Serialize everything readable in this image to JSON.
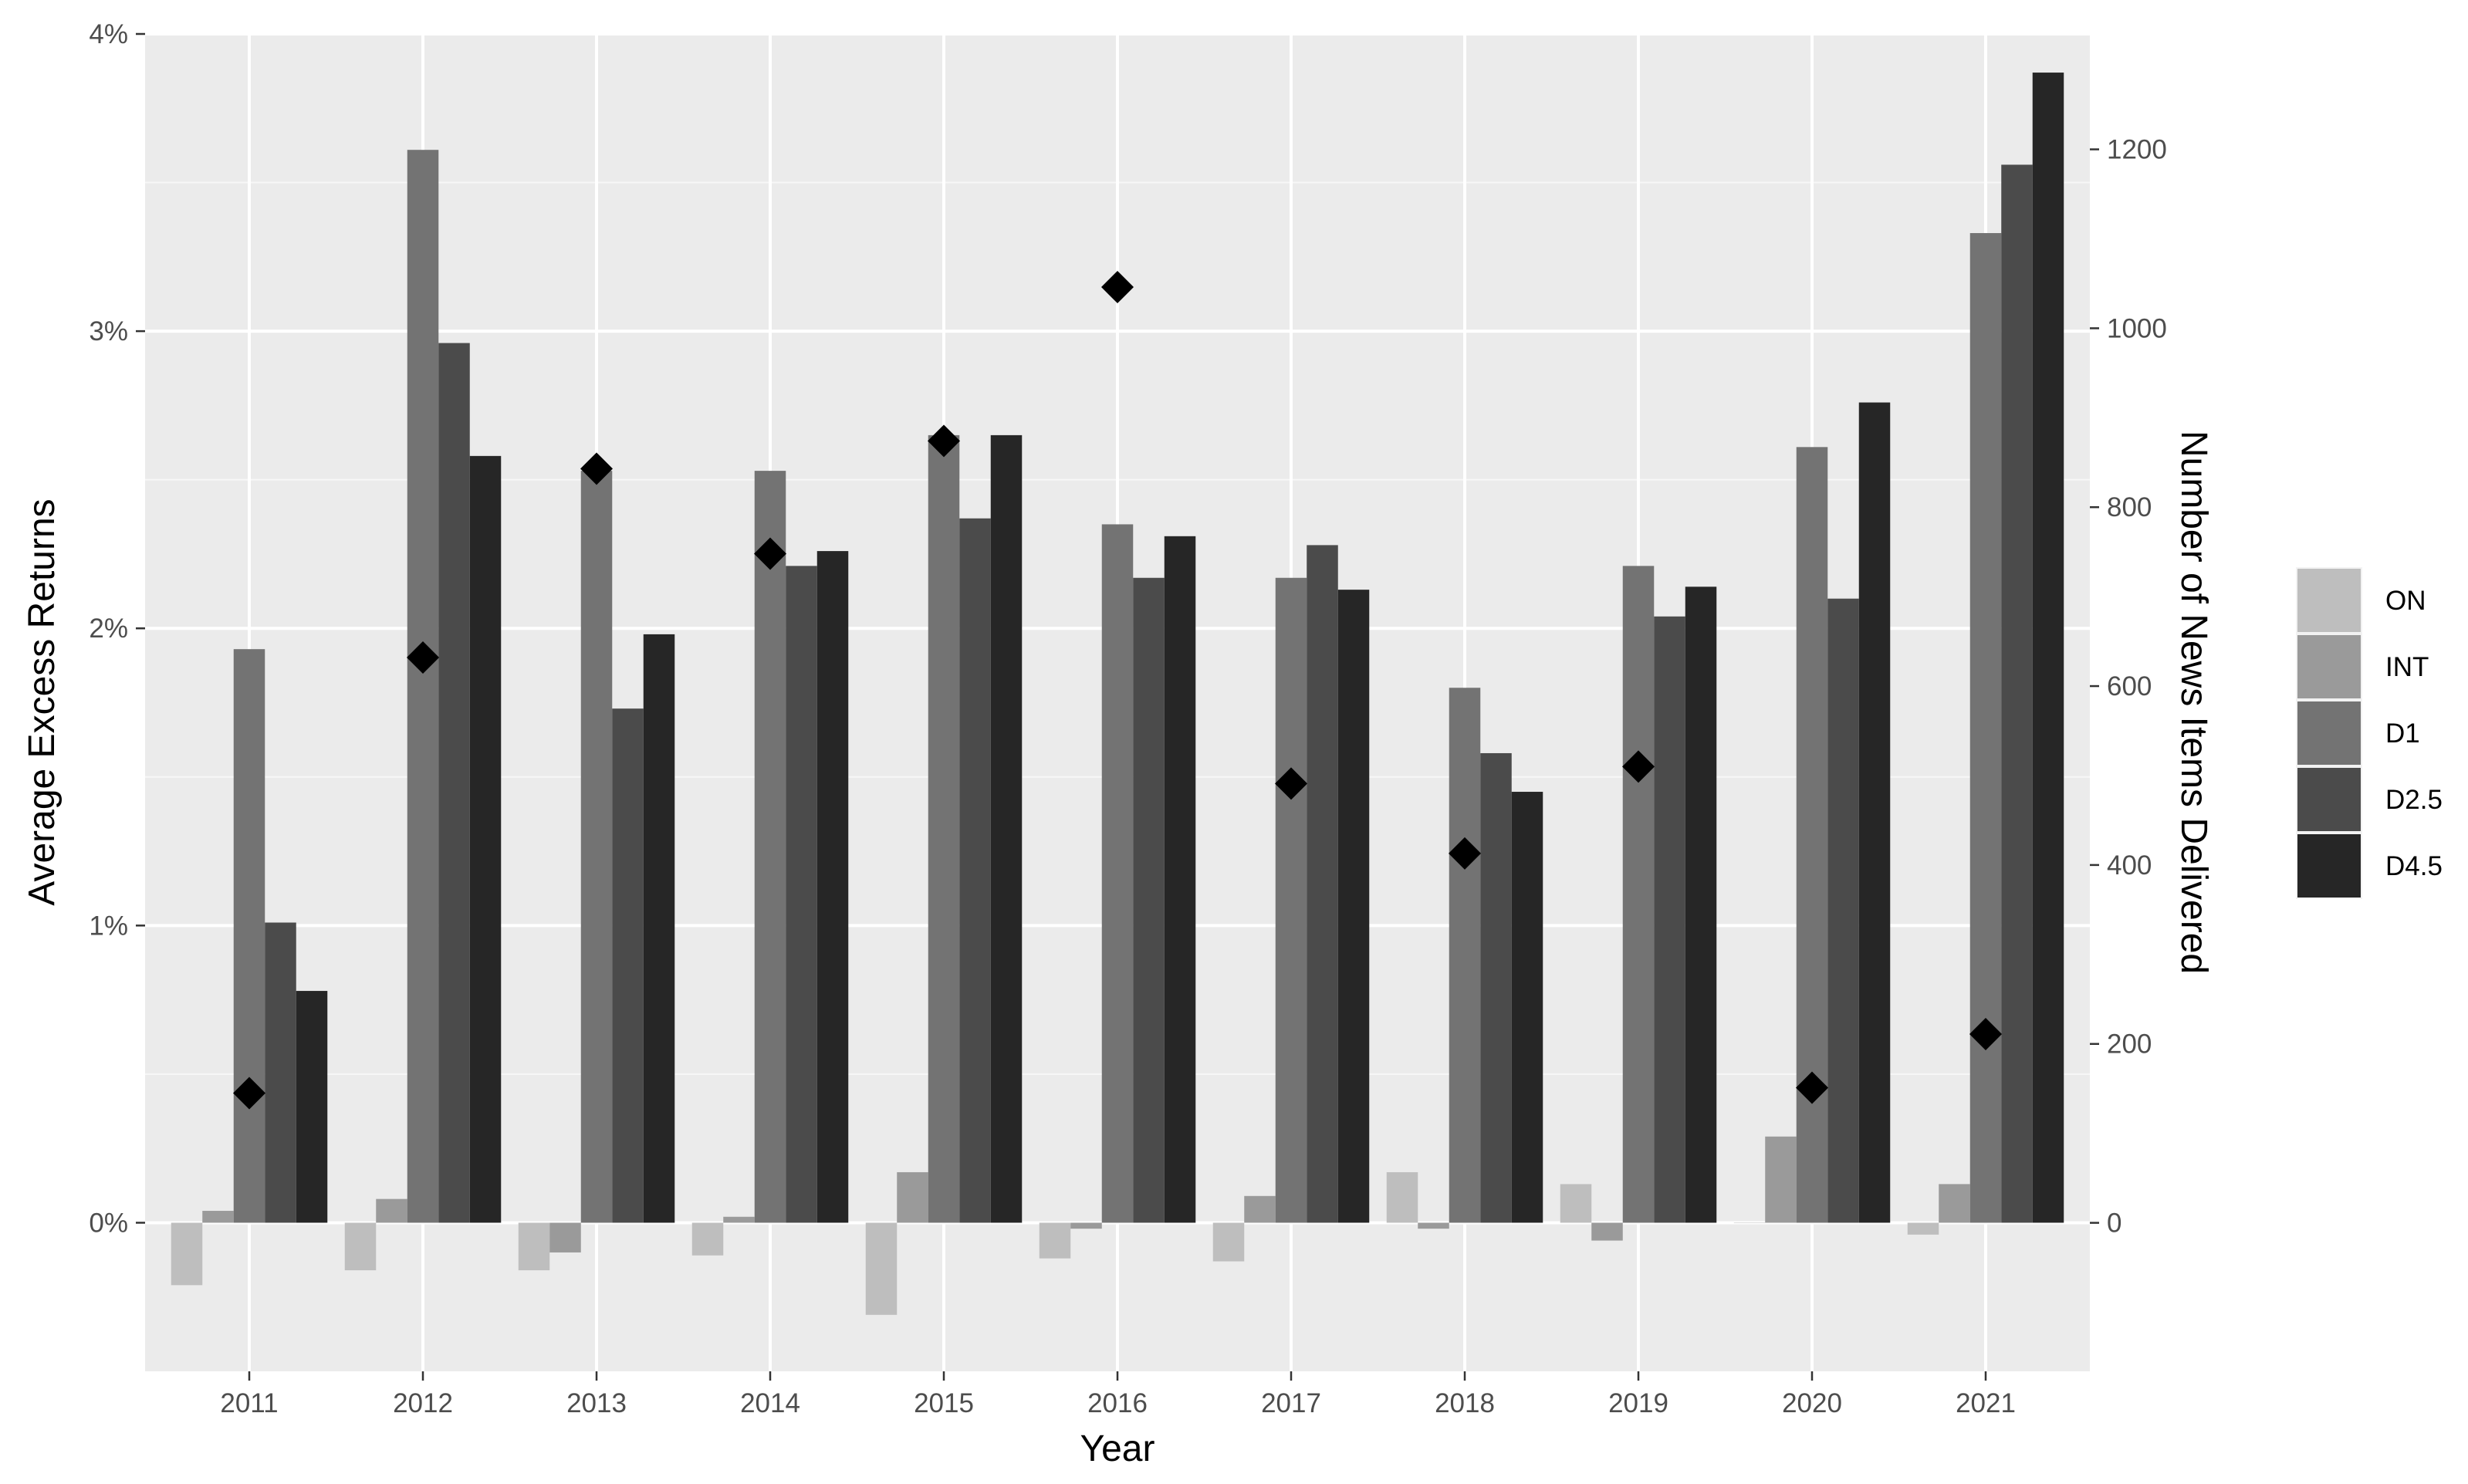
{
  "chart_data": {
    "type": "bar",
    "title": "",
    "xlabel": "Year",
    "ylabel": "Average Excess Returns",
    "ylabel_right": "Number of News Items Delivered",
    "categories": [
      "2011",
      "2012",
      "2013",
      "2014",
      "2015",
      "2016",
      "2017",
      "2018",
      "2019",
      "2020",
      "2021"
    ],
    "ylim": [
      -0.5,
      4.0
    ],
    "yticks": [
      0,
      1,
      2,
      3,
      4
    ],
    "ytick_labels": [
      "0%",
      "1%",
      "2%",
      "3%",
      "4%"
    ],
    "y2lim": [
      -166,
      1329
    ],
    "y2ticks": [
      0,
      200,
      400,
      600,
      800,
      1000,
      1200
    ],
    "y2tick_labels": [
      "0",
      "200",
      "400",
      "600",
      "800",
      "1000",
      "1200"
    ],
    "grid": true,
    "legend_position": "right",
    "series": [
      {
        "name": "ON",
        "color": "#bebebe",
        "values": [
          -0.21,
          -0.16,
          -0.16,
          -0.11,
          -0.31,
          -0.12,
          -0.13,
          0.17,
          0.13,
          0.0,
          -0.04
        ]
      },
      {
        "name": "INT",
        "color": "#9a9a9a",
        "values": [
          0.04,
          0.08,
          -0.1,
          0.02,
          0.17,
          -0.02,
          0.09,
          -0.02,
          -0.06,
          0.29,
          0.13
        ]
      },
      {
        "name": "D1",
        "color": "#737373",
        "values": [
          1.93,
          3.61,
          2.53,
          2.53,
          2.65,
          2.35,
          2.17,
          1.8,
          2.21,
          2.61,
          3.33
        ]
      },
      {
        "name": "D2.5",
        "color": "#4b4b4b",
        "values": [
          1.01,
          2.96,
          1.73,
          2.21,
          2.37,
          2.17,
          2.28,
          1.58,
          2.04,
          2.1,
          3.56
        ]
      },
      {
        "name": "D4.5",
        "color": "#262626",
        "values": [
          0.78,
          2.58,
          1.98,
          2.26,
          2.65,
          2.31,
          2.13,
          1.45,
          2.14,
          2.76,
          3.87
        ]
      }
    ],
    "points": {
      "axis": "right",
      "marker": "diamond",
      "color": "#000000",
      "values": [
        145,
        632,
        843,
        748,
        874,
        1046,
        491,
        413,
        510,
        151,
        211
      ]
    }
  }
}
